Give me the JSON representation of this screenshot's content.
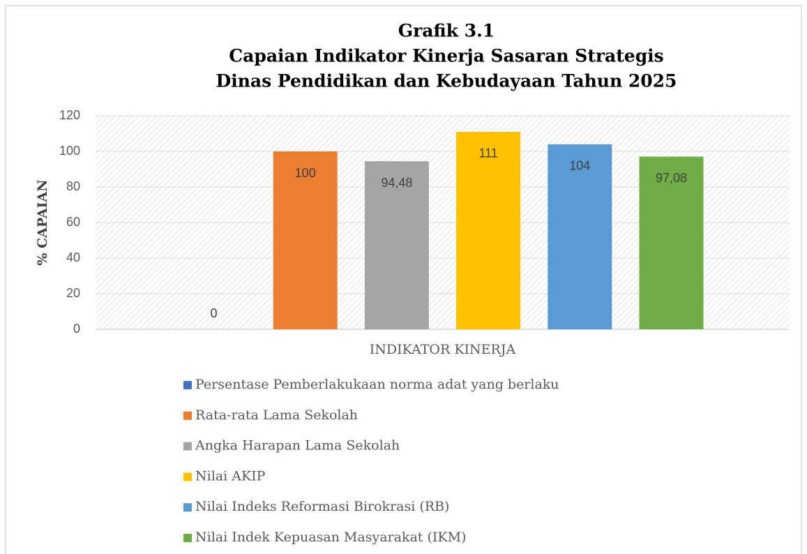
{
  "chart_data": {
    "type": "bar",
    "title": [
      "Grafik 3.1",
      "Capaian Indikator Kinerja Sasaran Strategis",
      "Dinas Pendidikan dan Kebudayaan Tahun 2025"
    ],
    "ylabel": "% CAPAIAN",
    "categories": [
      "INDIKATOR KINERJA"
    ],
    "ylim": [
      0,
      120
    ],
    "yticks": [
      0,
      20,
      40,
      60,
      80,
      100,
      120
    ],
    "grid": true,
    "legend": "bottom",
    "series": [
      {
        "name": "Persentase Pemberlakukaan norma adat yang berlaku",
        "color": "#4472c4",
        "values": [
          0
        ]
      },
      {
        "name": "Rata-rata Lama Sekolah",
        "color": "#ed7d31",
        "values": [
          100
        ]
      },
      {
        "name": "Angka Harapan Lama Sekolah",
        "color": "#a5a5a5",
        "values": [
          94.48
        ],
        "value_labels": [
          "94,48"
        ]
      },
      {
        "name": "Nilai AKIP",
        "color": "#ffc000",
        "values": [
          111
        ]
      },
      {
        "name": "Nilai Indeks Reformasi Birokrasi (RB)",
        "color": "#5b9bd5",
        "values": [
          104
        ]
      },
      {
        "name": "Nilai Indek Kepuasan Masyarakat (IKM)",
        "color": "#70ad47",
        "values": [
          97.08
        ],
        "value_labels": [
          "97,08"
        ]
      }
    ]
  }
}
